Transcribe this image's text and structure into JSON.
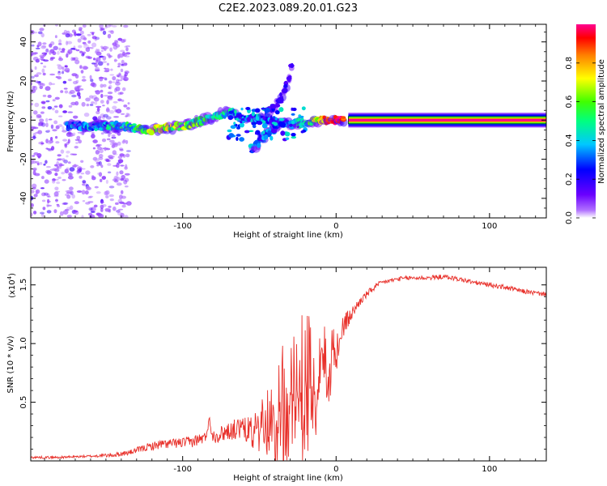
{
  "figure_title": "C2E2.2023.089.20.01.G23",
  "chart_data": [
    {
      "type": "heatmap",
      "title": "C2E2.2023.089.20.01.G23",
      "xlabel": "Height of straight line (km)",
      "ylabel": "Frequency (Hz)",
      "xlim": [
        -199,
        137
      ],
      "ylim": [
        -50,
        49
      ],
      "x_ticks": [
        -100,
        0,
        100
      ],
      "x_tick_labels": [
        "-100",
        "0",
        "100"
      ],
      "y_ticks": [
        -40,
        -20,
        0,
        20,
        40
      ],
      "y_tick_labels": [
        "-40",
        "-20",
        "0",
        "20",
        "40"
      ],
      "colorbar": {
        "label": "Normalized spectral amplitude",
        "range": [
          0,
          1
        ],
        "ticks": [
          0.0,
          0.2,
          0.4,
          0.6,
          0.8
        ],
        "tick_labels": [
          "0.0",
          "0.2",
          "0.4",
          "0.6",
          "0.8"
        ],
        "colormap": "rainbow (purple → blue → cyan → green → yellow → red → magenta)"
      },
      "features": {
        "steady_band": {
          "x_start": 8,
          "x_end": 137,
          "frequency_hz": 0,
          "amplitude": 1.0
        },
        "main_band": [
          [
            -175,
            -3,
            0.3
          ],
          [
            -160,
            -3,
            0.35
          ],
          [
            -145,
            -3,
            0.4
          ],
          [
            -130,
            -4,
            0.45
          ],
          [
            -120,
            -5,
            0.7
          ],
          [
            -110,
            -4,
            0.65
          ],
          [
            -100,
            -3,
            0.6
          ],
          [
            -90,
            -1,
            0.55
          ],
          [
            -80,
            2,
            0.5
          ],
          [
            -70,
            4,
            0.4
          ],
          [
            -60,
            1,
            0.3
          ],
          [
            -50,
            1,
            0.35
          ],
          [
            -40,
            -1,
            0.3
          ],
          [
            -30,
            -2,
            0.35
          ],
          [
            -20,
            -1,
            0.45
          ],
          [
            -10,
            0,
            0.8
          ],
          [
            0,
            0,
            0.9
          ],
          [
            5,
            0,
            0.95
          ]
        ],
        "secondary_branch": [
          [
            -55,
            -15,
            0.35
          ],
          [
            -50,
            -11,
            0.3
          ],
          [
            -45,
            -7,
            0.25
          ],
          [
            -40,
            -4,
            0.25
          ],
          [
            -35,
            -1,
            0.25
          ]
        ],
        "upper_branch": [
          [
            -45,
            4,
            0.2
          ],
          [
            -40,
            7,
            0.18
          ],
          [
            -35,
            12,
            0.15
          ],
          [
            -32,
            18,
            0.12
          ],
          [
            -30,
            24,
            0.1
          ],
          [
            -28,
            30,
            0.08
          ]
        ],
        "noise_region_x": [
          -199,
          -135
        ]
      }
    },
    {
      "type": "line",
      "xlabel": "Height of straight line (km)",
      "ylabel": "SNR (10 * v/v)",
      "y_multiplier": "(x10",
      "y_multiplier_exp": "4",
      "y_multiplier_end": ")",
      "xlim": [
        -199,
        137
      ],
      "ylim": [
        0,
        1.65
      ],
      "x_ticks": [
        -100,
        0,
        100
      ],
      "x_tick_labels": [
        "-100",
        "0",
        "100"
      ],
      "y_ticks": [
        0.5,
        1.0,
        1.5
      ],
      "y_tick_labels": [
        "0.5",
        "1.0",
        "1.5"
      ],
      "series": [
        {
          "name": "SNR",
          "color": "#e8302a",
          "x": [
            -199,
            -180,
            -160,
            -145,
            -135,
            -125,
            -115,
            -105,
            -95,
            -90,
            -85,
            -83,
            -80,
            -75,
            -70,
            -60,
            -50,
            -45,
            -40,
            -35,
            -30,
            -25,
            -20,
            -15,
            -10,
            -5,
            0,
            5,
            10,
            15,
            20,
            25,
            30,
            40,
            50,
            60,
            70,
            80,
            90,
            100,
            110,
            120,
            130,
            137
          ],
          "y": [
            0.03,
            0.03,
            0.04,
            0.05,
            0.07,
            0.11,
            0.14,
            0.15,
            0.16,
            0.18,
            0.2,
            0.35,
            0.21,
            0.23,
            0.26,
            0.28,
            0.32,
            0.37,
            0.45,
            0.55,
            0.62,
            0.7,
            0.78,
            0.83,
            0.8,
            0.9,
            1.0,
            1.15,
            1.25,
            1.35,
            1.42,
            1.48,
            1.52,
            1.55,
            1.56,
            1.56,
            1.57,
            1.55,
            1.52,
            1.5,
            1.48,
            1.45,
            1.43,
            1.42
          ],
          "spread": [
            0.01,
            0.01,
            0.01,
            0.02,
            0.02,
            0.03,
            0.04,
            0.04,
            0.05,
            0.05,
            0.05,
            0.05,
            0.06,
            0.07,
            0.08,
            0.1,
            0.15,
            0.25,
            0.4,
            0.5,
            0.55,
            0.5,
            0.5,
            0.45,
            0.35,
            0.3,
            0.2,
            0.1,
            0.06,
            0.04,
            0.03,
            0.03,
            0.02,
            0.02,
            0.02,
            0.02,
            0.02,
            0.02,
            0.02,
            0.02,
            0.02,
            0.02,
            0.02,
            0.02
          ]
        }
      ]
    }
  ]
}
